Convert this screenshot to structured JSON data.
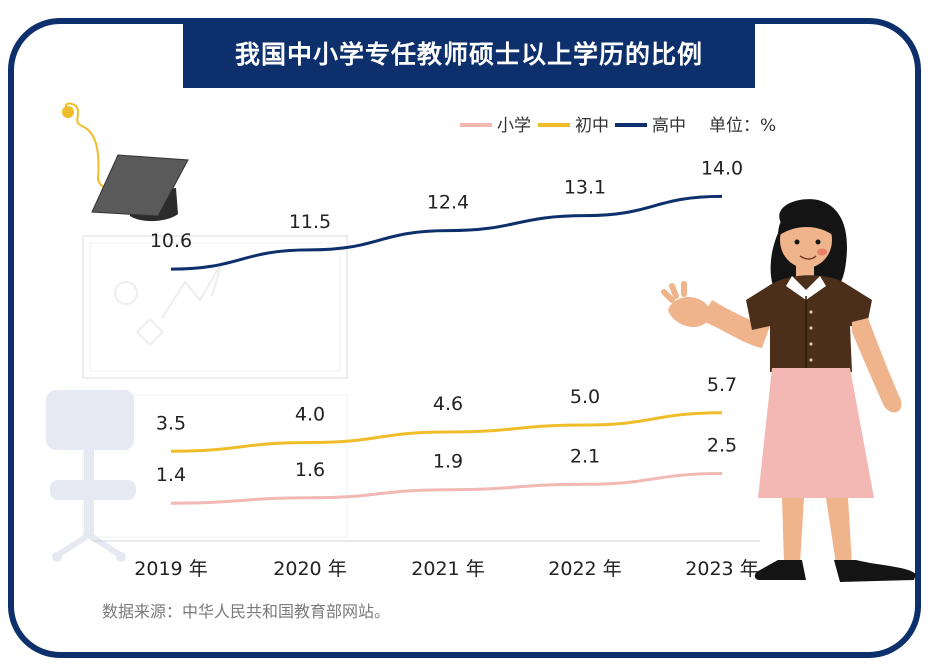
{
  "chart_data": {
    "type": "line",
    "title": "我国中小学专任教师硕士以上学历的比例",
    "unit_label": "单位：%",
    "categories": [
      "2019 年",
      "2020 年",
      "2021 年",
      "2022 年",
      "2023 年"
    ],
    "series": [
      {
        "name": "小学",
        "color": "#f2b8b3",
        "values": [
          1.4,
          1.6,
          1.9,
          2.1,
          2.5
        ]
      },
      {
        "name": "初中",
        "color": "#f0bd2a",
        "values": [
          3.5,
          4.0,
          4.6,
          5.0,
          5.7
        ]
      },
      {
        "name": "高中",
        "color": "#0d2f6b",
        "values": [
          10.6,
          11.5,
          12.4,
          13.1,
          14.0
        ]
      }
    ],
    "legend_position": "top-right",
    "grid": false
  },
  "source": "数据来源：中华人民共和国教育部网站。",
  "colors": {
    "frame": "#0d2f6b",
    "title_bg": "#0d2f6b"
  }
}
